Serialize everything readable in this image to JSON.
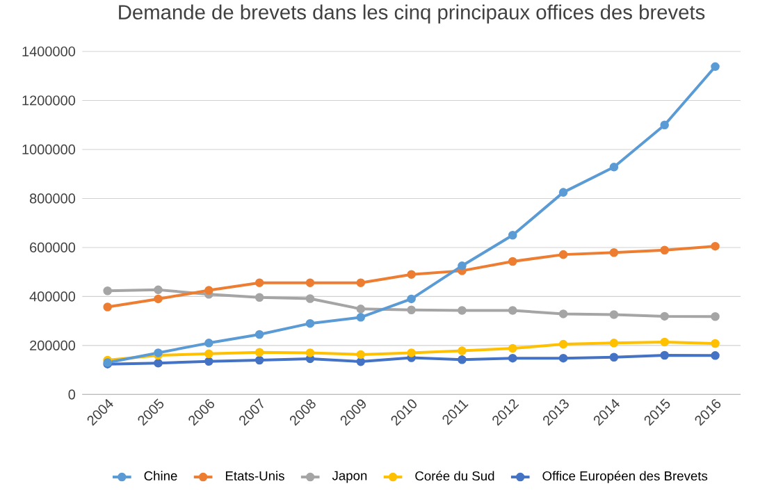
{
  "chart_data": {
    "type": "line",
    "title": "Demande de brevets dans les cinq principaux offices des brevets",
    "categories": [
      "2004",
      "2005",
      "2006",
      "2007",
      "2008",
      "2009",
      "2010",
      "2011",
      "2012",
      "2013",
      "2014",
      "2015",
      "2016"
    ],
    "series": [
      {
        "name": "Chine",
        "color": "#5b9bd5",
        "values": [
          130000,
          170000,
          210000,
          245000,
          290000,
          315000,
          390000,
          525000,
          650000,
          825000,
          928000,
          1100000,
          1338000
        ]
      },
      {
        "name": "Etats-Unis",
        "color": "#ed7d31",
        "values": [
          357000,
          390000,
          425000,
          456000,
          456000,
          456000,
          490000,
          505000,
          543000,
          571000,
          579000,
          589000,
          605000
        ]
      },
      {
        "name": "Japon",
        "color": "#a5a5a5",
        "values": [
          423000,
          427000,
          409000,
          396000,
          391000,
          349000,
          345000,
          343000,
          343000,
          329000,
          326000,
          319000,
          318000
        ]
      },
      {
        "name": "Corée du Sud",
        "color": "#ffc000",
        "values": [
          140000,
          160000,
          166000,
          172000,
          170000,
          163000,
          170000,
          178000,
          188000,
          205000,
          210000,
          214000,
          208000
        ]
      },
      {
        "name": "Office Européen des Brevets",
        "color": "#4472c4",
        "values": [
          124000,
          128000,
          135000,
          140000,
          146000,
          134000,
          150000,
          142000,
          148000,
          148000,
          152000,
          160000,
          159000
        ]
      }
    ],
    "ylim": [
      0,
      1400000
    ],
    "yticks": [
      0,
      200000,
      400000,
      600000,
      800000,
      1000000,
      1200000,
      1400000
    ],
    "grid": "y",
    "legend": "bottom",
    "marker": "circle",
    "line_style": "solid"
  }
}
